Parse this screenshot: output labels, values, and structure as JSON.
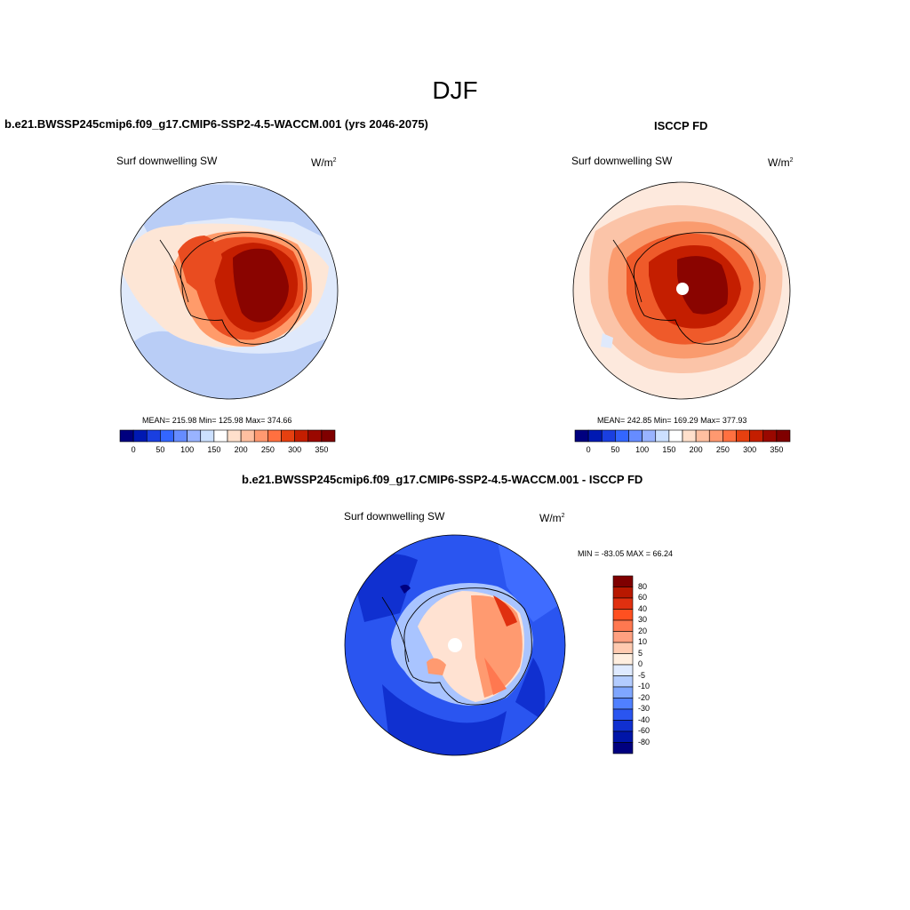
{
  "figure": {
    "title": "DJF"
  },
  "panels": [
    {
      "title": "b.e21.BWSSP245cmip6.f09_g17.CMIP6-SSP2-4.5-WACCM.001 (yrs 2046-2075)",
      "variable": "Surf downwelling SW",
      "units": "W/m",
      "units_sup": "2",
      "stats": "MEAN= 215.98  Min= 125.98  Max= 374.66"
    },
    {
      "title": "ISCCP FD",
      "variable": "Surf downwelling SW",
      "units": "W/m",
      "units_sup": "2",
      "stats": "MEAN= 242.85  Min= 169.29  Max= 377.93"
    },
    {
      "title": "b.e21.BWSSP245cmip6.f09_g17.CMIP6-SSP2-4.5-WACCM.001 - ISCCP FD",
      "variable": "Surf downwelling SW",
      "units": "W/m",
      "units_sup": "2",
      "stats": "MIN = -83.05 MAX =  66.24"
    }
  ],
  "chart_data": [
    {
      "type": "heatmap",
      "projection": "south-polar-stereographic",
      "colorbar": {
        "orientation": "horizontal",
        "tick_labels": [
          "0",
          "50",
          "100",
          "150",
          "200",
          "250",
          "300",
          "350"
        ],
        "colors": [
          "#00007f",
          "#0019b2",
          "#1a3fe0",
          "#3366ff",
          "#668cff",
          "#99b3ff",
          "#cce0ff",
          "#ffffff",
          "#ffe0cc",
          "#ffbfa0",
          "#ff9970",
          "#ff7040",
          "#e64010",
          "#c41e00",
          "#9a0800",
          "#7f0000"
        ]
      },
      "mean": 215.98,
      "min": 125.98,
      "max": 374.66
    },
    {
      "type": "heatmap",
      "projection": "south-polar-stereographic",
      "colorbar": {
        "orientation": "horizontal",
        "tick_labels": [
          "0",
          "50",
          "100",
          "150",
          "200",
          "250",
          "300",
          "350"
        ],
        "colors": [
          "#00007f",
          "#0019b2",
          "#1a3fe0",
          "#3366ff",
          "#668cff",
          "#99b3ff",
          "#cce0ff",
          "#ffffff",
          "#ffe0cc",
          "#ffbfa0",
          "#ff9970",
          "#ff7040",
          "#e64010",
          "#c41e00",
          "#9a0800",
          "#7f0000"
        ]
      },
      "mean": 242.85,
      "min": 169.29,
      "max": 377.93
    },
    {
      "type": "heatmap",
      "projection": "south-polar-stereographic",
      "colorbar": {
        "orientation": "vertical",
        "tick_labels": [
          "80",
          "60",
          "40",
          "30",
          "20",
          "10",
          "5",
          "0",
          "-5",
          "-10",
          "-20",
          "-30",
          "-40",
          "-60",
          "-80"
        ],
        "colors": [
          "#7f0000",
          "#b81800",
          "#e03010",
          "#ff5020",
          "#ff7850",
          "#ffa080",
          "#ffcab0",
          "#ffeedf",
          "#dfeaff",
          "#b3ccff",
          "#7fa6ff",
          "#5080ff",
          "#2a55f0",
          "#1030d0",
          "#0015a8",
          "#00007f"
        ]
      },
      "min": -83.05,
      "max": 66.24
    }
  ]
}
